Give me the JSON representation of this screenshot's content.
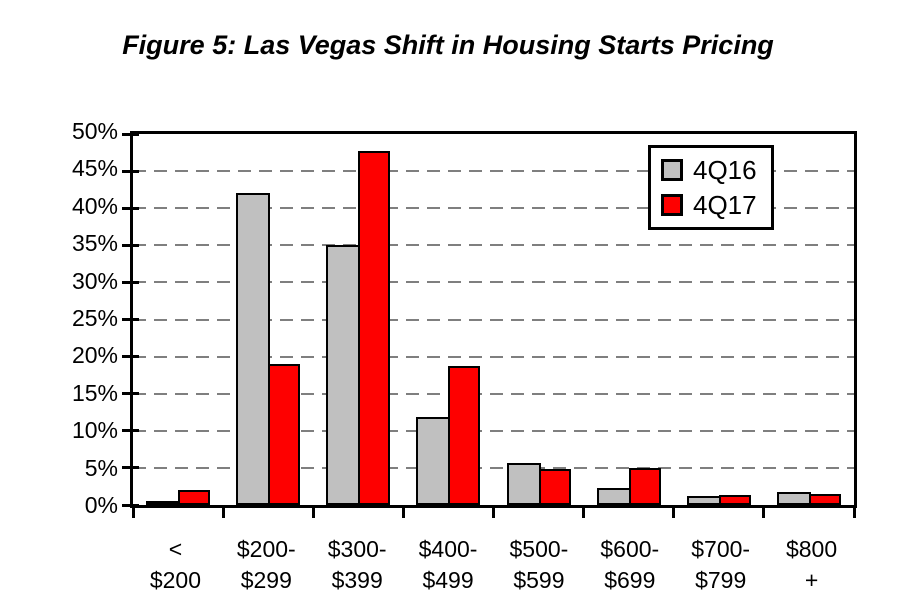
{
  "title": "Figure 5: Las Vegas Shift in Housing Starts Pricing",
  "legend": {
    "position": "top-right",
    "items": [
      {
        "label": "4Q16",
        "color": "#C0C0C0"
      },
      {
        "label": "4Q17",
        "color": "#FE0000"
      }
    ]
  },
  "y_axis": {
    "tick_labels": [
      "50%",
      "45%",
      "40%",
      "35%",
      "30%",
      "25%",
      "20%",
      "15%",
      "10%",
      "5%",
      "0%"
    ]
  },
  "colors": {
    "bar_outline": "#000000",
    "gridline": "#7f7f7f",
    "frame": "#000000",
    "background": "#ffffff"
  },
  "chart_data": {
    "type": "bar",
    "title": "Figure 5: Las Vegas Shift in Housing Starts Pricing",
    "xlabel": "",
    "ylabel": "",
    "ylim": [
      0,
      50
    ],
    "ytick_step": 5,
    "grid": "horizontal-dashed",
    "legend_position": "top-right",
    "categories_line1": [
      "<",
      "$200-",
      "$300-",
      "$400-",
      "$500-",
      "$600-",
      "$700-",
      "$800"
    ],
    "categories_line2": [
      "$200",
      "$299",
      "$399",
      "$499",
      "$599",
      "$699",
      "$799",
      "+"
    ],
    "categories": [
      "< $200",
      "$200-$299",
      "$300-$399",
      "$400-$499",
      "$500-$599",
      "$600-$699",
      "$700-$799",
      "$800 +"
    ],
    "series": [
      {
        "name": "4Q16",
        "color": "#C0C0C0",
        "values": [
          0.3,
          42.0,
          35.0,
          11.8,
          5.6,
          2.3,
          1.2,
          1.7
        ]
      },
      {
        "name": "4Q17",
        "color": "#FE0000",
        "values": [
          2.0,
          19.0,
          47.7,
          18.7,
          4.9,
          5.0,
          1.3,
          1.5
        ]
      }
    ]
  }
}
